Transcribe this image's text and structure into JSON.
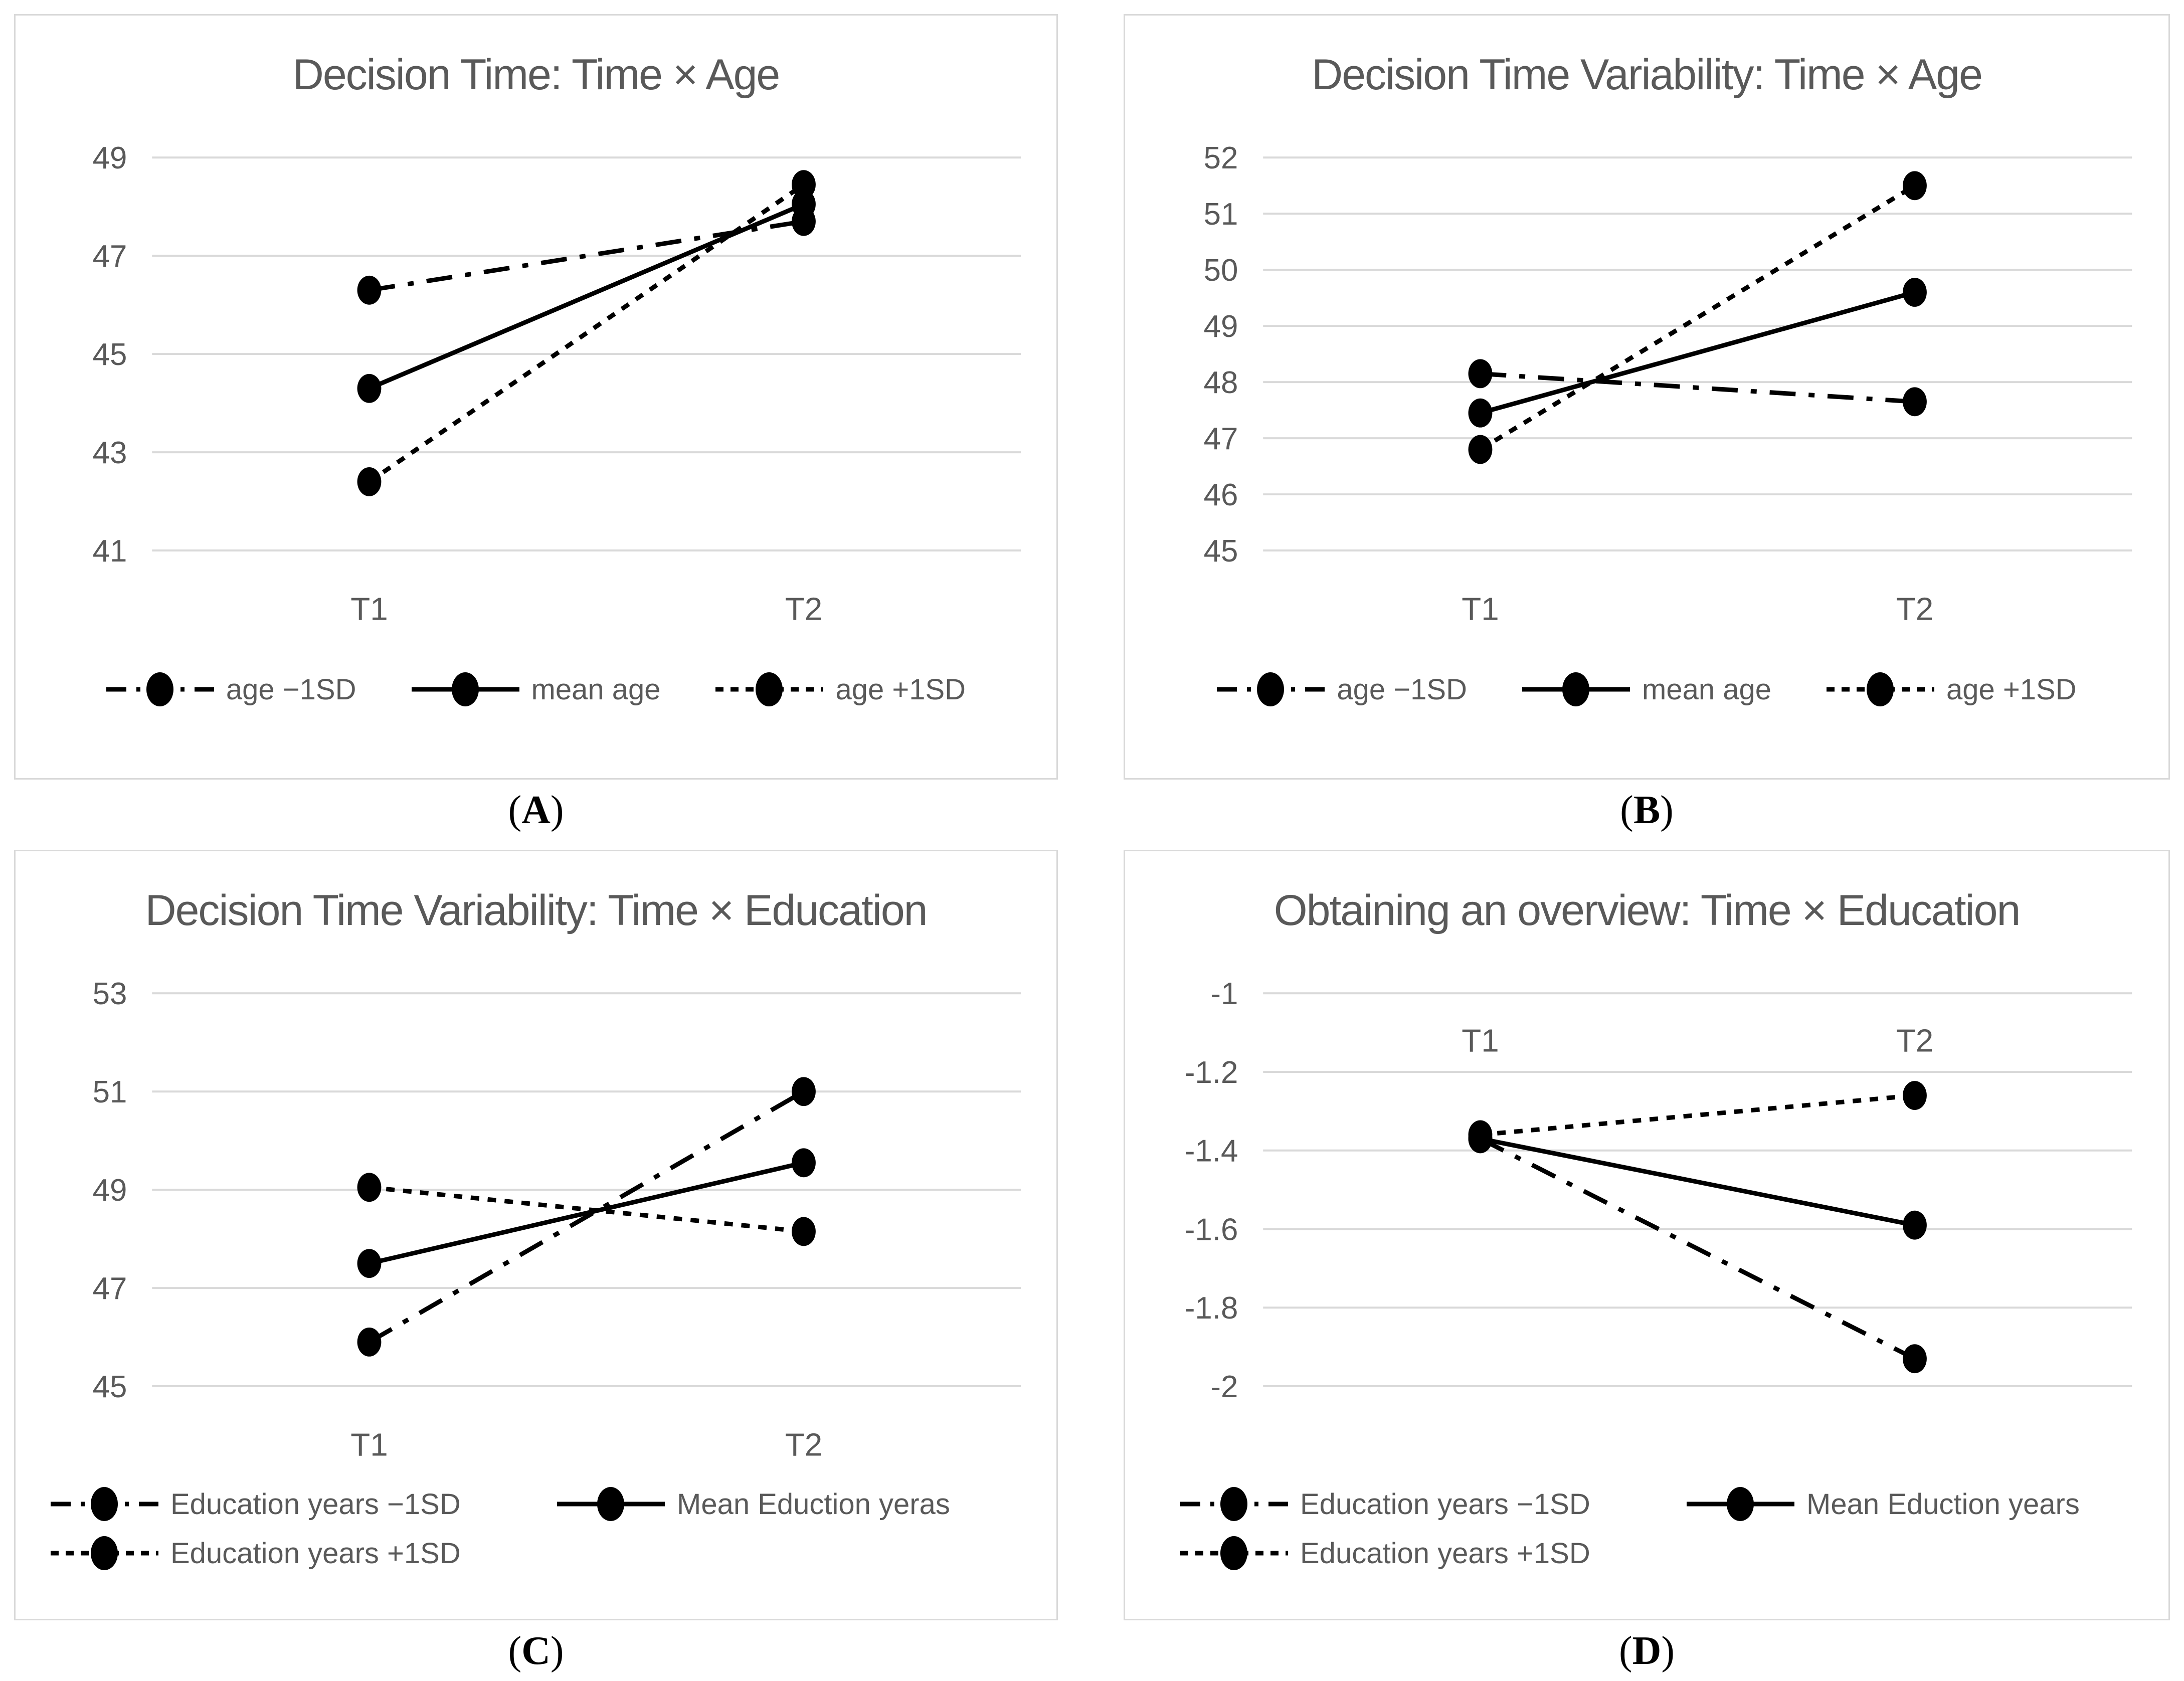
{
  "figure": {
    "background": "#ffffff",
    "panel_border_color": "#d9d9d9",
    "text_color": "#595959",
    "gridline_color": "#d9d9d9",
    "series_color": "#000000"
  },
  "panels": [
    {
      "caption": {
        "open": "(",
        "letter": "A",
        "close": ")"
      },
      "chart_data": {
        "type": "line",
        "title": "Decision Time: Time × Age",
        "categories": [
          "T1",
          "T2"
        ],
        "category_labels_position": "bottom",
        "grid": true,
        "legend_position": "bottom-center-row",
        "yticks": [
          {
            "label": "49",
            "value": 49
          },
          {
            "label": "47",
            "value": 47
          },
          {
            "label": "45",
            "value": 45
          },
          {
            "label": "43",
            "value": 43
          },
          {
            "label": "41",
            "value": 41
          }
        ],
        "ylim": [
          49.6,
          40.7
        ],
        "series": [
          {
            "name": "age −1SD",
            "line_style": "long-dash-dot",
            "values": [
              46.3,
              47.7
            ]
          },
          {
            "name": "mean age",
            "line_style": "solid",
            "values": [
              44.3,
              48.05
            ]
          },
          {
            "name": "age +1SD",
            "line_style": "short-dash",
            "values": [
              42.4,
              48.45
            ]
          }
        ]
      }
    },
    {
      "caption": {
        "open": "(",
        "letter": "B",
        "close": ")"
      },
      "chart_data": {
        "type": "line",
        "title": "Decision Time Variability: Time × Age",
        "categories": [
          "T1",
          "T2"
        ],
        "category_labels_position": "bottom",
        "grid": true,
        "legend_position": "bottom-center-row",
        "yticks": [
          {
            "label": "52",
            "value": 52
          },
          {
            "label": "51",
            "value": 51
          },
          {
            "label": "50",
            "value": 50
          },
          {
            "label": "49",
            "value": 49
          },
          {
            "label": "48",
            "value": 48
          },
          {
            "label": "47",
            "value": 47
          },
          {
            "label": "46",
            "value": 46
          },
          {
            "label": "45",
            "value": 45
          }
        ],
        "ylim": [
          52.45,
          44.6
        ],
        "series": [
          {
            "name": "age −1SD",
            "line_style": "long-dash-dot",
            "values": [
              48.15,
              47.65
            ]
          },
          {
            "name": "mean age",
            "line_style": "solid",
            "values": [
              47.45,
              49.6
            ]
          },
          {
            "name": "age +1SD",
            "line_style": "short-dash",
            "values": [
              46.8,
              51.5
            ]
          }
        ]
      }
    },
    {
      "caption": {
        "open": "(",
        "letter": "C",
        "close": ")"
      },
      "chart_data": {
        "type": "line",
        "title": "Decision Time Variability: Time × Education",
        "categories": [
          "T1",
          "T2"
        ],
        "category_labels_position": "bottom",
        "grid": true,
        "legend_position": "bottom-left-grid",
        "yticks": [
          {
            "label": "53",
            "value": 53
          },
          {
            "label": "51",
            "value": 51
          },
          {
            "label": "49",
            "value": 49
          },
          {
            "label": "47",
            "value": 47
          },
          {
            "label": "45",
            "value": 45
          }
        ],
        "ylim": [
          53.55,
          44.55
        ],
        "series": [
          {
            "name": "Education years −1SD",
            "line_style": "long-dash-dot",
            "values": [
              45.9,
              51.0
            ]
          },
          {
            "name": "Mean Eduction yeras",
            "line_style": "solid",
            "values": [
              47.5,
              49.55
            ]
          },
          {
            "name": "Education years +1SD",
            "line_style": "short-dash",
            "values": [
              49.05,
              48.15
            ]
          }
        ]
      }
    },
    {
      "caption": {
        "open": "(",
        "letter": "D",
        "close": ")"
      },
      "chart_data": {
        "type": "line",
        "title": "Obtaining an overview: Time × Education",
        "categories": [
          "T1",
          "T2"
        ],
        "category_labels_position": "inside-top",
        "category_labels_value": -1.12,
        "grid": true,
        "legend_position": "bottom-left-grid",
        "yticks": [
          {
            "label": "-1",
            "value": -1
          },
          {
            "label": "-1.2",
            "value": -1.2
          },
          {
            "label": "-1.4",
            "value": -1.4
          },
          {
            "label": "-1.6",
            "value": -1.6
          },
          {
            "label": "-1.8",
            "value": -1.8
          },
          {
            "label": "-2",
            "value": -2
          }
        ],
        "ylim": [
          -0.93,
          -2.06
        ],
        "series": [
          {
            "name": "Education years −1SD",
            "line_style": "long-dash-dot",
            "values": [
              -1.37,
              -1.93
            ]
          },
          {
            "name": "Mean Eduction years",
            "line_style": "solid",
            "values": [
              -1.37,
              -1.59
            ]
          },
          {
            "name": "Education years +1SD",
            "line_style": "short-dash",
            "values": [
              -1.36,
              -1.26
            ]
          }
        ]
      }
    }
  ]
}
